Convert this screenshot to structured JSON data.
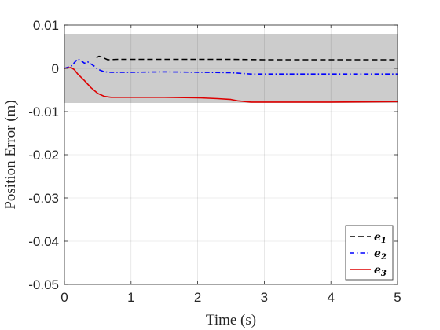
{
  "chart_data": {
    "type": "line",
    "xlabel": "Time (s)",
    "ylabel": "Position Error (m)",
    "xlim": [
      0,
      5
    ],
    "ylim": [
      -0.05,
      0.01
    ],
    "xticks": [
      0,
      1,
      2,
      3,
      4,
      5
    ],
    "xtick_labels": [
      "0",
      "1",
      "2",
      "3",
      "4",
      "5"
    ],
    "yticks": [
      0.01,
      0,
      -0.01,
      -0.02,
      -0.03,
      -0.04,
      -0.05
    ],
    "ytick_labels": [
      "0.01",
      "0",
      "-0.01",
      "-0.02",
      "-0.03",
      "-0.04",
      "-0.05"
    ],
    "grid": true,
    "legend_position": "bottom-right",
    "band": {
      "y_min": -0.008,
      "y_max": 0.008,
      "color": "#cccccc"
    },
    "series": [
      {
        "name": "e",
        "subscript": "1",
        "color": "#000000",
        "style": "dashed",
        "points": [
          [
            0.48,
            0.0025
          ],
          [
            0.52,
            0.0028
          ],
          [
            0.58,
            0.0025
          ],
          [
            0.65,
            0.002
          ],
          [
            0.8,
            0.0021
          ],
          [
            1.0,
            0.0021
          ],
          [
            1.5,
            0.0021
          ],
          [
            2.0,
            0.0021
          ],
          [
            2.5,
            0.0021
          ],
          [
            3.0,
            0.002
          ],
          [
            3.5,
            0.002
          ],
          [
            4.0,
            0.002
          ],
          [
            4.5,
            0.002
          ],
          [
            5.0,
            0.002
          ]
        ]
      },
      {
        "name": "e",
        "subscript": "2",
        "color": "#0000ff",
        "style": "dashdot",
        "points": [
          [
            0.0,
            0.0
          ],
          [
            0.1,
            0.0005
          ],
          [
            0.2,
            0.0022
          ],
          [
            0.25,
            0.0018
          ],
          [
            0.3,
            0.0012
          ],
          [
            0.35,
            0.0015
          ],
          [
            0.4,
            0.001
          ],
          [
            0.45,
            0.0005
          ],
          [
            0.5,
            -0.0002
          ],
          [
            0.6,
            -0.0008
          ],
          [
            0.7,
            -0.0009
          ],
          [
            1.0,
            -0.0009
          ],
          [
            1.5,
            -0.0008
          ],
          [
            2.0,
            -0.0009
          ],
          [
            2.5,
            -0.001
          ],
          [
            2.8,
            -0.0013
          ],
          [
            3.0,
            -0.0013
          ],
          [
            4.0,
            -0.0013
          ],
          [
            5.0,
            -0.0013
          ]
        ]
      },
      {
        "name": "e",
        "subscript": "3",
        "color": "#dd0000",
        "style": "solid",
        "points": [
          [
            0.0,
            0.0
          ],
          [
            0.1,
            0.0002
          ],
          [
            0.15,
            -0.0003
          ],
          [
            0.2,
            -0.0013
          ],
          [
            0.3,
            -0.0028
          ],
          [
            0.4,
            -0.0045
          ],
          [
            0.5,
            -0.0058
          ],
          [
            0.6,
            -0.0065
          ],
          [
            0.7,
            -0.0067
          ],
          [
            1.0,
            -0.0067
          ],
          [
            1.5,
            -0.0067
          ],
          [
            2.0,
            -0.0068
          ],
          [
            2.3,
            -0.007
          ],
          [
            2.5,
            -0.0072
          ],
          [
            2.6,
            -0.0075
          ],
          [
            2.8,
            -0.0078
          ],
          [
            3.0,
            -0.0078
          ],
          [
            4.0,
            -0.0078
          ],
          [
            5.0,
            -0.0077
          ]
        ]
      }
    ]
  }
}
